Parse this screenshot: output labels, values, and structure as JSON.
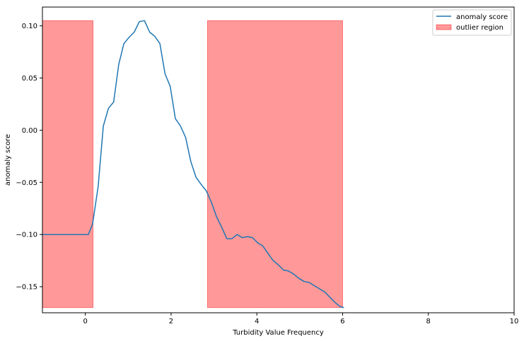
{
  "chart_data": {
    "type": "line",
    "title": "",
    "xlabel": "Turbidity Value Frequency",
    "ylabel": "anomaly score",
    "xlim": [
      -1,
      10
    ],
    "ylim": [
      -0.175,
      0.118
    ],
    "xticks": [
      0,
      2,
      4,
      6,
      8,
      10
    ],
    "xtick_labels": [
      "0",
      "2",
      "4",
      "6",
      "8",
      "10"
    ],
    "yticks": [
      -0.15,
      -0.1,
      -0.05,
      0.0,
      0.05,
      0.1
    ],
    "ytick_labels": [
      "−0.15",
      "−0.10",
      "−0.05",
      "0.00",
      "0.05",
      "0.10"
    ],
    "grid": false,
    "legend_position": "top-right",
    "series": [
      {
        "name": "anomaly score",
        "color": "#1f77b4",
        "x": [
          -1.0,
          0.07,
          0.17,
          0.3,
          0.42,
          0.54,
          0.66,
          0.78,
          0.9,
          1.02,
          1.14,
          1.26,
          1.38,
          1.5,
          1.62,
          1.74,
          1.86,
          1.98,
          2.1,
          2.22,
          2.34,
          2.46,
          2.58,
          2.7,
          2.82,
          2.94,
          3.06,
          3.18,
          3.3,
          3.42,
          3.54,
          3.66,
          3.78,
          3.9,
          4.02,
          4.14,
          4.26,
          4.38,
          4.5,
          4.62,
          4.74,
          4.86,
          4.98,
          5.1,
          5.22,
          5.34,
          5.46,
          5.58,
          5.7,
          5.82,
          5.94,
          6.02
        ],
        "y": [
          -0.1,
          -0.1,
          -0.09,
          -0.054,
          0.004,
          0.021,
          0.027,
          0.063,
          0.083,
          0.089,
          0.094,
          0.104,
          0.105,
          0.094,
          0.09,
          0.083,
          0.054,
          0.042,
          0.011,
          0.004,
          -0.007,
          -0.03,
          -0.045,
          -0.052,
          -0.058,
          -0.069,
          -0.083,
          -0.093,
          -0.104,
          -0.104,
          -0.1,
          -0.103,
          -0.102,
          -0.103,
          -0.108,
          -0.111,
          -0.118,
          -0.125,
          -0.129,
          -0.134,
          -0.135,
          -0.138,
          -0.142,
          -0.145,
          -0.146,
          -0.149,
          -0.152,
          -0.155,
          -0.16,
          -0.165,
          -0.169,
          -0.17
        ]
      }
    ],
    "regions": [
      {
        "name": "outlier region",
        "color": "#ff0000",
        "alpha": 0.4,
        "x_start": -1.0,
        "x_end": 0.18,
        "y_start": -0.17,
        "y_end": 0.105
      },
      {
        "name": "outlier region",
        "color": "#ff0000",
        "alpha": 0.4,
        "x_start": 2.85,
        "x_end": 6.0,
        "y_start": -0.17,
        "y_end": 0.105
      }
    ],
    "legend": [
      {
        "label": "anomaly score",
        "kind": "line",
        "color": "#1f77b4"
      },
      {
        "label": "outlier region",
        "kind": "patch",
        "color": "#ff0000"
      }
    ]
  }
}
